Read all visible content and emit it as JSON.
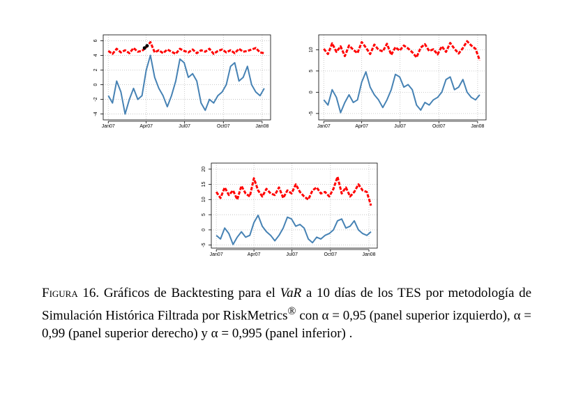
{
  "chart_data": [
    {
      "type": "line",
      "grid": true,
      "x": [
        0,
        10,
        20,
        30,
        40,
        50,
        60,
        70,
        80,
        90,
        100,
        110,
        120,
        130,
        140,
        150,
        160,
        170,
        180,
        190,
        200,
        210,
        220,
        230,
        240,
        250,
        260,
        270,
        280,
        290,
        300,
        310,
        320,
        330,
        340,
        350,
        360,
        370
      ],
      "xlim": [
        -12,
        385
      ],
      "xticks": [
        {
          "value": 0,
          "label": "Jan07"
        },
        {
          "value": 90,
          "label": "Apr07"
        },
        {
          "value": 181,
          "label": "Jul07"
        },
        {
          "value": 273,
          "label": "Oct07"
        },
        {
          "value": 365,
          "label": "Jan08"
        }
      ],
      "ylim": [
        -4.8,
        6.8
      ],
      "yticks": [
        -4,
        -2,
        0,
        2,
        4,
        6
      ],
      "series": [
        {
          "color": "#ff0000",
          "values": [
            4.6,
            4.2,
            4.9,
            4.4,
            4.7,
            4.3,
            5.0,
            4.5,
            4.6,
            5.1,
            5.8,
            4.4,
            4.7,
            4.3,
            4.8,
            4.5,
            4.2,
            4.9,
            4.6,
            4.4,
            4.8,
            4.3,
            4.7,
            4.5,
            4.9,
            4.2,
            4.6,
            4.8,
            4.4,
            4.7,
            4.3,
            4.9,
            4.5,
            4.6,
            4.8,
            5.0,
            4.4,
            4.3
          ]
        },
        {
          "color": "#4682b4",
          "values": [
            -1.5,
            -2.5,
            0.5,
            -1,
            -4,
            -2,
            -0.5,
            -2,
            -1.5,
            2,
            4,
            1,
            -0.5,
            -1.5,
            -3,
            -1.5,
            0.5,
            3.5,
            3,
            1,
            1.5,
            0.5,
            -2.5,
            -3.5,
            -2,
            -2.5,
            -1.5,
            -1,
            0,
            2.5,
            3,
            0.5,
            1,
            2.5,
            0,
            -1,
            -1.5,
            -0.5
          ]
        }
      ],
      "markers": {
        "color": "#000000",
        "x": [
          86,
          92
        ],
        "values": [
          5.0,
          5.3
        ]
      }
    },
    {
      "type": "line",
      "grid": true,
      "x": [
        0,
        10,
        20,
        30,
        40,
        50,
        60,
        70,
        80,
        90,
        100,
        110,
        120,
        130,
        140,
        150,
        160,
        170,
        180,
        190,
        200,
        210,
        220,
        230,
        240,
        250,
        260,
        270,
        280,
        290,
        300,
        310,
        320,
        330,
        340,
        350,
        360,
        370
      ],
      "xlim": [
        -12,
        385
      ],
      "xticks": [
        {
          "value": 0,
          "label": "Jan07"
        },
        {
          "value": 90,
          "label": "Apr07"
        },
        {
          "value": 181,
          "label": "Jul07"
        },
        {
          "value": 273,
          "label": "Oct07"
        },
        {
          "value": 365,
          "label": "Jan08"
        }
      ],
      "ylim": [
        -6.5,
        13.5
      ],
      "yticks": [
        -5,
        0,
        5,
        10
      ],
      "series": [
        {
          "color": "#ff0000",
          "values": [
            10.2,
            9,
            11.5,
            9.5,
            10.8,
            8.5,
            11,
            10,
            9.2,
            11.8,
            10.5,
            9,
            11.2,
            10,
            9.6,
            11.4,
            8.8,
            10.6,
            9.8,
            11,
            10.3,
            9.4,
            8.2,
            10.5,
            11.3,
            9.7,
            10.1,
            8.9,
            10.8,
            9.5,
            11.6,
            10.2,
            9.1,
            10.4,
            12,
            11,
            10.2,
            7.5
          ]
        },
        {
          "color": "#4682b4",
          "values": [
            -1.8,
            -3,
            0.6,
            -1.2,
            -4.8,
            -2.4,
            -0.6,
            -2.4,
            -1.8,
            2.4,
            4.8,
            1.2,
            -0.6,
            -1.8,
            -3.6,
            -1.8,
            0.6,
            4.2,
            3.6,
            1.2,
            1.8,
            0.6,
            -3,
            -4.2,
            -2.4,
            -3,
            -1.8,
            -1.2,
            0,
            3,
            3.6,
            0.6,
            1.2,
            3,
            0,
            -1.2,
            -1.8,
            -0.6
          ]
        }
      ]
    },
    {
      "type": "line",
      "grid": true,
      "x": [
        0,
        10,
        20,
        30,
        40,
        50,
        60,
        70,
        80,
        90,
        100,
        110,
        120,
        130,
        140,
        150,
        160,
        170,
        180,
        190,
        200,
        210,
        220,
        230,
        240,
        250,
        260,
        270,
        280,
        290,
        300,
        310,
        320,
        330,
        340,
        350,
        360,
        370
      ],
      "xlim": [
        -12,
        385
      ],
      "xticks": [
        {
          "value": 0,
          "label": "Jan07"
        },
        {
          "value": 90,
          "label": "Apr07"
        },
        {
          "value": 181,
          "label": "Jul07"
        },
        {
          "value": 273,
          "label": "Oct07"
        },
        {
          "value": 365,
          "label": "Jan08"
        }
      ],
      "ylim": [
        -6,
        22
      ],
      "yticks": [
        -5,
        0,
        5,
        10,
        15,
        20
      ],
      "series": [
        {
          "color": "#ff0000",
          "values": [
            12.5,
            10.5,
            14,
            11.5,
            13,
            10,
            14.5,
            12,
            11,
            17,
            13,
            11,
            13.5,
            12,
            11.5,
            14,
            10.5,
            13,
            12,
            15,
            12.5,
            11,
            10,
            13,
            14,
            12,
            12.5,
            11,
            13.5,
            17.5,
            12,
            14,
            11,
            12.5,
            15,
            13,
            12.5,
            8
          ]
        },
        {
          "color": "#4682b4",
          "values": [
            -1.8,
            -3,
            0.6,
            -1.2,
            -4.8,
            -2.4,
            -0.6,
            -2.4,
            -1.8,
            2.4,
            4.8,
            1.2,
            -0.6,
            -1.8,
            -3.6,
            -1.8,
            0.6,
            4.2,
            3.6,
            1.2,
            1.8,
            0.6,
            -3,
            -4.2,
            -2.4,
            -3,
            -1.8,
            -1.2,
            0,
            3,
            3.6,
            0.6,
            1.2,
            3,
            0,
            -1.2,
            -1.8,
            -0.6
          ]
        }
      ]
    }
  ],
  "caption": [
    "Figura 16.",
    "Gráficos de Backtesting para el",
    "VaR",
    "a 10 días de los TES por metodología de Simulación Histórica Filtrada por RiskMetrics",
    "®",
    "con α = 0,95 (panel superior izquierdo), α = 0,99 (panel superior derecho) y α = 0,995 (panel inferior) ."
  ]
}
